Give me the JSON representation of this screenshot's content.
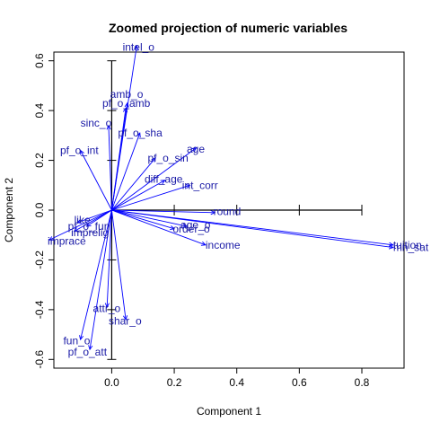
{
  "chart_data": {
    "type": "scatter",
    "title": "Zoomed projection of numeric variables",
    "xlabel": "Component 1",
    "ylabel": "Component 2",
    "xlim": [
      -0.185,
      0.935
    ],
    "ylim": [
      -0.635,
      0.635
    ],
    "x_ticks": [
      0.0,
      0.2,
      0.4,
      0.6,
      0.8
    ],
    "x_tick_labels": [
      "0.0",
      "0.2",
      "0.4",
      "0.6",
      "0.8"
    ],
    "y_ticks": [
      -0.6,
      -0.4,
      -0.2,
      0.0,
      0.2,
      0.4,
      0.6
    ],
    "y_tick_labels": [
      "-0.6",
      "-0.4",
      "-0.2",
      "0.0",
      "0.2",
      "0.4",
      "0.6"
    ],
    "arrow_color": "#0000ff",
    "label_color": "#1a1aa6",
    "vectors": [
      {
        "label": "intel_o",
        "x": 0.08,
        "y": 0.66,
        "lx": 0.035,
        "ly": 0.655
      },
      {
        "label": "amb_o",
        "x": 0.05,
        "y": 0.43,
        "lx": -0.005,
        "ly": 0.465
      },
      {
        "label": "pf_o_amb",
        "x": 0.045,
        "y": 0.41,
        "lx": -0.03,
        "ly": 0.43
      },
      {
        "label": "sinc_o",
        "x": -0.01,
        "y": 0.34,
        "lx": -0.1,
        "ly": 0.35
      },
      {
        "label": "pf_o_sha",
        "x": 0.09,
        "y": 0.31,
        "lx": 0.02,
        "ly": 0.31
      },
      {
        "label": "pf_o_int",
        "x": -0.1,
        "y": 0.24,
        "lx": -0.165,
        "ly": 0.24
      },
      {
        "label": "age",
        "x": 0.27,
        "y": 0.25,
        "lx": 0.24,
        "ly": 0.245
      },
      {
        "label": "pf_o_sin",
        "x": 0.14,
        "y": 0.21,
        "lx": 0.115,
        "ly": 0.21
      },
      {
        "label": "diff_age",
        "x": 0.17,
        "y": 0.12,
        "lx": 0.105,
        "ly": 0.125
      },
      {
        "label": "int_corr",
        "x": 0.25,
        "y": 0.1,
        "lx": 0.225,
        "ly": 0.1
      },
      {
        "label": "round",
        "x": 0.33,
        "y": -0.01,
        "lx": 0.325,
        "ly": -0.005
      },
      {
        "label": "like",
        "x": -0.11,
        "y": -0.05,
        "lx": -0.12,
        "ly": -0.04
      },
      {
        "label": "pf_o_fun",
        "x": -0.08,
        "y": -0.065,
        "lx": -0.14,
        "ly": -0.065
      },
      {
        "label": "imprelig",
        "x": -0.12,
        "y": -0.085,
        "lx": -0.13,
        "ly": -0.09
      },
      {
        "label": "imprace",
        "x": -0.2,
        "y": -0.12,
        "lx": -0.205,
        "ly": -0.125
      },
      {
        "label": "age_o",
        "x": 0.24,
        "y": -0.065,
        "lx": 0.22,
        "ly": -0.06
      },
      {
        "label": "order_o",
        "x": 0.2,
        "y": -0.075,
        "lx": 0.195,
        "ly": -0.075
      },
      {
        "label": "income",
        "x": 0.3,
        "y": -0.14,
        "lx": 0.3,
        "ly": -0.14
      },
      {
        "label": "tuition",
        "x": 0.9,
        "y": -0.14,
        "lx": 0.9,
        "ly": -0.14
      },
      {
        "label": "mn_sat",
        "x": 0.9,
        "y": -0.15,
        "lx": 0.9,
        "ly": -0.15
      },
      {
        "label": "attr_o",
        "x": -0.015,
        "y": -0.39,
        "lx": -0.06,
        "ly": -0.395
      },
      {
        "label": "shar_o",
        "x": 0.045,
        "y": -0.44,
        "lx": -0.01,
        "ly": -0.445
      },
      {
        "label": "fun_o",
        "x": -0.1,
        "y": -0.52,
        "lx": -0.155,
        "ly": -0.525
      },
      {
        "label": "pf_o_att",
        "x": -0.07,
        "y": -0.56,
        "lx": -0.14,
        "ly": -0.57
      }
    ]
  }
}
